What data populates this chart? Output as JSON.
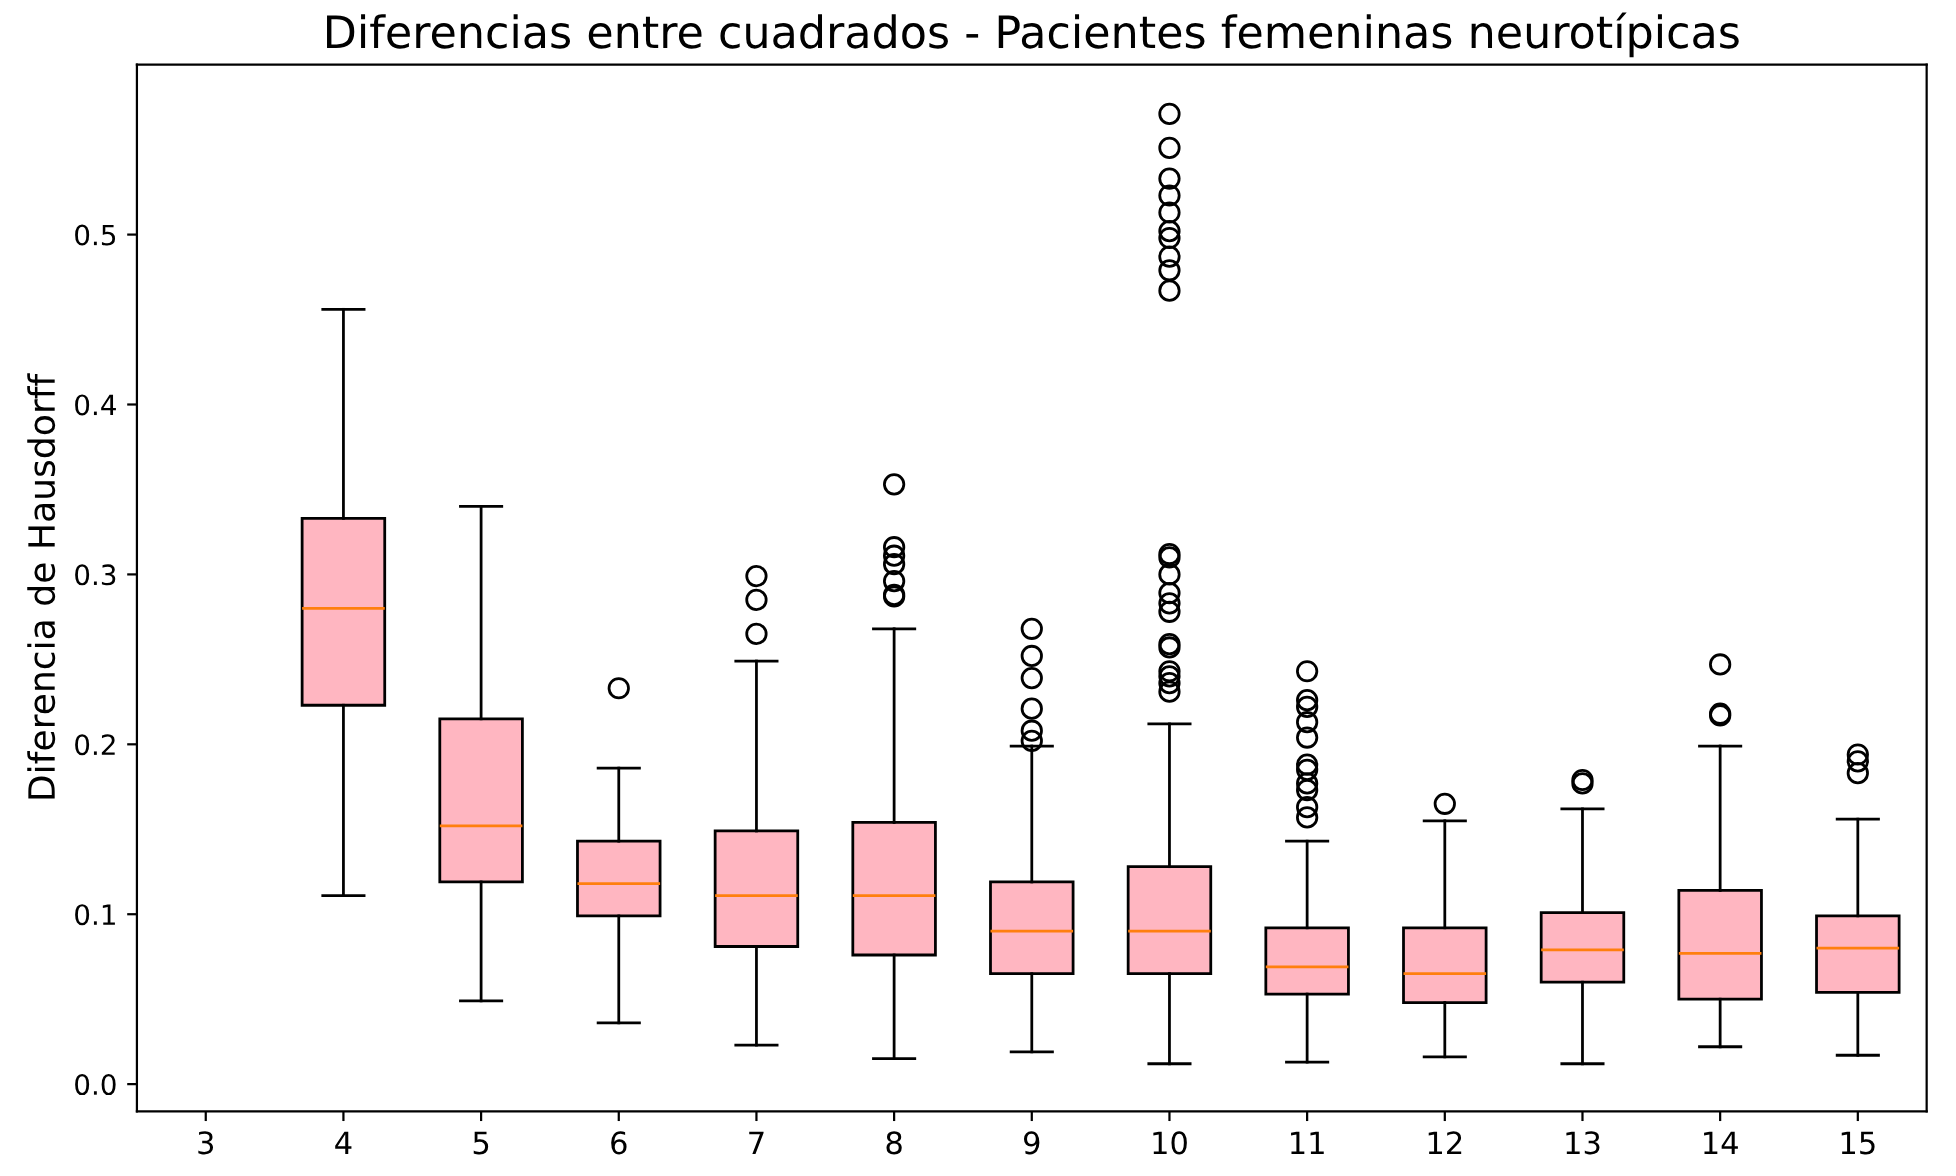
{
  "chart_data": {
    "type": "box",
    "title": "Diferencias entre cuadrados - Pacientes femeninas neurotípicas",
    "ylabel": "Diferencia de Hausdorff",
    "categories": [
      "3",
      "4",
      "5",
      "6",
      "7",
      "8",
      "9",
      "10",
      "11",
      "12",
      "13",
      "14",
      "15"
    ],
    "color": "#ffb6c1",
    "boxes": [
      null,
      {
        "low": 0.111,
        "q1": 0.223,
        "median": 0.28,
        "q3": 0.333,
        "high": 0.456
      },
      {
        "low": 0.049,
        "q1": 0.119,
        "median": 0.152,
        "q3": 0.215,
        "high": 0.34
      },
      {
        "low": 0.036,
        "q1": 0.099,
        "median": 0.118,
        "q3": 0.143,
        "high": 0.186,
        "outliers": [
          0.233
        ]
      },
      {
        "low": 0.023,
        "q1": 0.081,
        "median": 0.111,
        "q3": 0.149,
        "high": 0.249,
        "outliers": [
          0.299,
          0.285,
          0.265
        ]
      },
      {
        "low": 0.015,
        "q1": 0.076,
        "median": 0.111,
        "q3": 0.154,
        "high": 0.268,
        "outliers": [
          0.353,
          0.316,
          0.311,
          0.306,
          0.296,
          0.288,
          0.287
        ]
      },
      {
        "low": 0.019,
        "q1": 0.065,
        "median": 0.09,
        "q3": 0.119,
        "high": 0.199,
        "outliers": [
          0.268,
          0.252,
          0.239,
          0.221,
          0.208,
          0.202
        ]
      },
      {
        "low": 0.012,
        "q1": 0.065,
        "median": 0.09,
        "q3": 0.128,
        "high": 0.212,
        "outliers": [
          0.571,
          0.551,
          0.533,
          0.523,
          0.513,
          0.502,
          0.498,
          0.487,
          0.479,
          0.467,
          0.312,
          0.31,
          0.3,
          0.289,
          0.283,
          0.278,
          0.259,
          0.257,
          0.243,
          0.24,
          0.236,
          0.231
        ]
      },
      {
        "low": 0.013,
        "q1": 0.053,
        "median": 0.069,
        "q3": 0.092,
        "high": 0.143,
        "outliers": [
          0.243,
          0.226,
          0.222,
          0.213,
          0.204,
          0.188,
          0.185,
          0.177,
          0.173,
          0.163,
          0.157
        ]
      },
      {
        "low": 0.016,
        "q1": 0.048,
        "median": 0.065,
        "q3": 0.092,
        "high": 0.155,
        "outliers": [
          0.165
        ]
      },
      {
        "low": 0.012,
        "q1": 0.06,
        "median": 0.079,
        "q3": 0.101,
        "high": 0.162,
        "outliers": [
          0.179,
          0.177
        ]
      },
      {
        "low": 0.022,
        "q1": 0.05,
        "median": 0.077,
        "q3": 0.114,
        "high": 0.199,
        "outliers": [
          0.247,
          0.218,
          0.217
        ]
      },
      {
        "low": 0.017,
        "q1": 0.054,
        "median": 0.08,
        "q3": 0.099,
        "high": 0.156,
        "outliers": [
          0.194,
          0.19,
          0.183
        ]
      }
    ],
    "ylim": [
      -0.016,
      0.6
    ],
    "yticks": [
      {
        "value": 0,
        "label": "0.0"
      },
      {
        "value": 0.1,
        "label": "0.1"
      },
      {
        "value": 0.2,
        "label": "0.2"
      },
      {
        "value": 0.3,
        "label": "0.3"
      },
      {
        "value": 0.4,
        "label": "0.4"
      },
      {
        "value": 0.5,
        "label": "0.5"
      }
    ],
    "grid": false
  }
}
